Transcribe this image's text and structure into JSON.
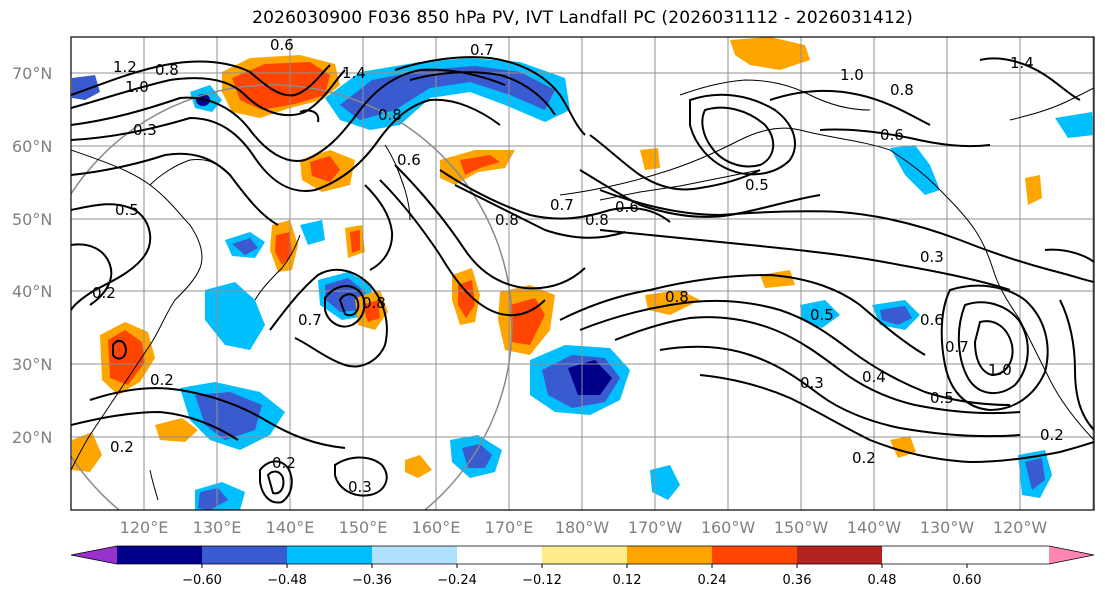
{
  "title": "2026030900 F036 850 hPa PV, IVT Landfall PC (2026031112 - 2026031412)",
  "lat_labels": [
    "70°N",
    "60°N",
    "50°N",
    "40°N",
    "30°N",
    "20°N"
  ],
  "lon_labels": [
    "120°E",
    "130°E",
    "140°E",
    "150°E",
    "160°E",
    "170°E",
    "180°W",
    "170°W",
    "160°W",
    "150°W",
    "140°W",
    "130°W",
    "120°W"
  ],
  "colorbar": {
    "ticks": [
      "−0.60",
      "−0.48",
      "−0.36",
      "−0.24",
      "−0.12",
      "0.12",
      "0.24",
      "0.36",
      "0.48",
      "0.60"
    ],
    "colors": [
      "#9932cc",
      "#00008b",
      "#3a5bd0",
      "#00bfff",
      "#b0e2ff",
      "#ffffff",
      "#ffec8b",
      "#ffa500",
      "#ff4500",
      "#b22222",
      "#ff86b3"
    ]
  },
  "contour_labels": [
    "1.2",
    "1.0",
    "0.8",
    "0.3",
    "0.6",
    "0.7",
    "1.4",
    "0.5",
    "0.2",
    "0.4"
  ],
  "map_data": {
    "variable_contours": "850 hPa PV (PVU)",
    "variable_fill": "IVT Landfall PC",
    "extent": {
      "lon": [
        "110°E",
        "110°W"
      ],
      "lat": [
        "10°N",
        "75°N"
      ]
    }
  }
}
